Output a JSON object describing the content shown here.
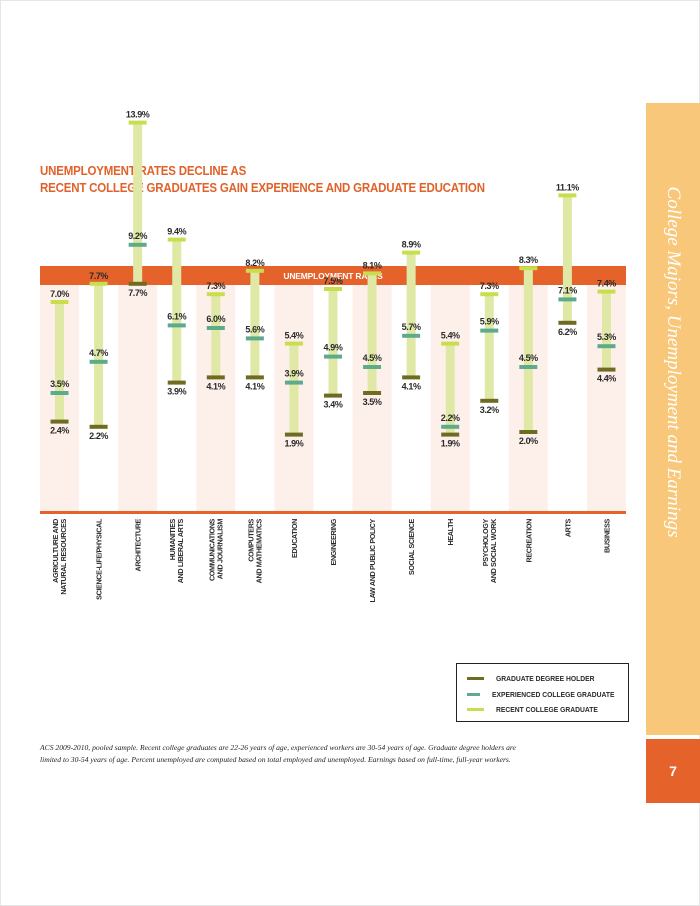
{
  "title": {
    "line1": "UNEMPLOYMENT RATES DECLINE AS",
    "line2": "RECENT COLLEGE GRADUATES GAIN EXPERIENCE AND GRADUATE EDUCATION"
  },
  "side_title": "College Majors, Unemployment and Earnings",
  "page_number": "7",
  "footnote": "ACS 2009-2010, pooled sample. Recent college graduates are 22-26 years of age, experienced workers are 30-54 years of age. Graduate degree holders are limited to 30-54 years of age. Percent unemployed are computed based on total employed and unemployed. Earnings based on full-time, full-year workers.",
  "colors": {
    "accent": "#e5622a",
    "graduate": "#6f6b23",
    "experienced": "#5eaa8c",
    "recent": "#c9de4f",
    "bar": "#dfe8a4",
    "stripe": "#fdf0ea"
  },
  "legend": [
    {
      "name": "GRADUATE DEGREE HOLDER",
      "color": "#6f6b23"
    },
    {
      "name": "EXPERIENCED COLLEGE GRADUATE",
      "color": "#5eaa8c"
    },
    {
      "name": "RECENT COLLEGE GRADUATE",
      "color": "#c9de4f"
    }
  ],
  "chart_data": {
    "type": "range",
    "title": "UNEMPLOYMENT RATES",
    "ylim": [
      0,
      15
    ],
    "categories": [
      [
        "AGRICULTURE AND",
        "NATURAL RESOURCES"
      ],
      [
        "SCIENCE-LIFE/PHYSICAL"
      ],
      [
        "ARCHITECTURE"
      ],
      [
        "HUMANITIES",
        "AND LIBERAL ARTS"
      ],
      [
        "COMMUNICATIONS",
        "AND JOURNALISM"
      ],
      [
        "COMPUTERS",
        "AND MATHEMATICS"
      ],
      [
        "EDUCATION"
      ],
      [
        "ENGINEERING"
      ],
      [
        "LAW AND PUBLIC POLICY"
      ],
      [
        "SOCIAL SCIENCE"
      ],
      [
        "HEALTH"
      ],
      [
        "PSYCHOLOGY",
        "AND SOCIAL WORK"
      ],
      [
        "RECREATION"
      ],
      [
        "ARTS"
      ],
      [
        "BUSINESS"
      ]
    ],
    "series": [
      {
        "name": "RECENT COLLEGE GRADUATE",
        "values": [
          7.0,
          7.7,
          13.9,
          9.4,
          7.3,
          8.2,
          5.4,
          7.5,
          8.1,
          8.9,
          5.4,
          7.3,
          8.3,
          11.1,
          7.4
        ]
      },
      {
        "name": "EXPERIENCED COLLEGE GRADUATE",
        "values": [
          3.5,
          4.7,
          9.2,
          6.1,
          6.0,
          5.6,
          3.9,
          4.9,
          4.5,
          5.7,
          2.2,
          5.9,
          4.5,
          7.1,
          5.3
        ]
      },
      {
        "name": "GRADUATE DEGREE HOLDER",
        "values": [
          2.4,
          2.2,
          7.7,
          3.9,
          4.1,
          4.1,
          1.9,
          3.4,
          3.5,
          4.1,
          1.9,
          3.2,
          2.0,
          6.2,
          4.4
        ]
      }
    ],
    "labels": [
      [
        "7.0%",
        "3.5%",
        "2.4%"
      ],
      [
        "7.7%",
        "4.7%",
        "2.2%"
      ],
      [
        "13.9%",
        "9.2%",
        "7.7%"
      ],
      [
        "9.4%",
        "6.1%",
        "3.9%"
      ],
      [
        "7.3%",
        "6.0%",
        "4.1%"
      ],
      [
        "8.2%",
        "5.6%",
        "4.1%"
      ],
      [
        "5.4%",
        "3.9%",
        "1.9%"
      ],
      [
        "7.5%",
        "4.9%",
        "3.4%"
      ],
      [
        "8.1%",
        "4.5%",
        "3.5%"
      ],
      [
        "8.9%",
        "5.7%",
        "4.1%"
      ],
      [
        "5.4%",
        "2.2%",
        "1.9%"
      ],
      [
        "7.3%",
        "5.9%",
        "3.2%"
      ],
      [
        "8.3%",
        "4.5%",
        "2.0%"
      ],
      [
        "11.1%",
        "7.1%",
        "6.2%"
      ],
      [
        "7.4%",
        "5.3%",
        "4.4%"
      ]
    ]
  }
}
